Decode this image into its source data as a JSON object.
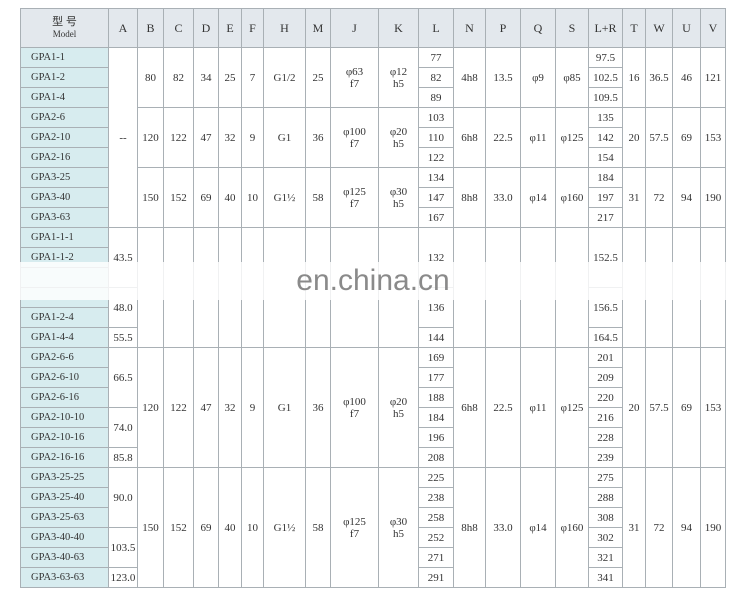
{
  "table": {
    "header": {
      "model": "型 号",
      "model_en": "Model",
      "columns": [
        "A",
        "B",
        "C",
        "D",
        "E",
        "F",
        "H",
        "M",
        "J",
        "K",
        "L",
        "N",
        "P",
        "Q",
        "S",
        "L+R",
        "T",
        "W",
        "U",
        "V"
      ]
    },
    "models": [
      "GPA1-1",
      "GPA1-2",
      "GPA1-4",
      "GPA2-6",
      "GPA2-10",
      "GPA2-16",
      "GPA3-25",
      "GPA3-40",
      "GPA3-63",
      "GPA1-1-1",
      "GPA1-1-2",
      null,
      null,
      "GPA1-2-4",
      "GPA1-4-4",
      "GPA2-6-6",
      "GPA2-6-10",
      "GPA2-6-16",
      "GPA2-10-10",
      "GPA2-10-16",
      "GPA2-16-16",
      "GPA3-25-25",
      "GPA3-25-40",
      "GPA3-25-63",
      "GPA3-40-40",
      "GPA3-40-63",
      "GPA3-63-63"
    ],
    "rows": [
      [
        "--",
        "80",
        "82",
        "34",
        "25",
        "7",
        "G1/2",
        "25",
        "φ63\nf7",
        "φ12\nh5",
        "77",
        "4h8",
        "13.5",
        "φ9",
        "φ85",
        "97.5",
        "16",
        "36.5",
        "46",
        "121"
      ],
      [
        null,
        null,
        null,
        null,
        null,
        null,
        null,
        null,
        null,
        null,
        "82",
        null,
        null,
        null,
        null,
        "102.5",
        null,
        null,
        null,
        null
      ],
      [
        null,
        null,
        null,
        null,
        null,
        null,
        null,
        null,
        null,
        null,
        "89",
        null,
        null,
        null,
        null,
        "109.5",
        null,
        null,
        null,
        null
      ],
      [
        null,
        "120",
        "122",
        "47",
        "32",
        "9",
        "G1",
        "36",
        "φ100\nf7",
        "φ20\nh5",
        "103",
        "6h8",
        "22.5",
        "φ11",
        "φ125",
        "135",
        "20",
        "57.5",
        "69",
        "153"
      ],
      [
        null,
        null,
        null,
        null,
        null,
        null,
        null,
        null,
        null,
        null,
        "110",
        null,
        null,
        null,
        null,
        "142",
        null,
        null,
        null,
        null
      ],
      [
        null,
        null,
        null,
        null,
        null,
        null,
        null,
        null,
        null,
        null,
        "122",
        null,
        null,
        null,
        null,
        "154",
        null,
        null,
        null,
        null
      ],
      [
        null,
        "150",
        "152",
        "69",
        "40",
        "10",
        "G1½",
        "58",
        "φ125\nf7",
        "φ30\nh5",
        "134",
        "8h8",
        "33.0",
        "φ14",
        "φ160",
        "184",
        "31",
        "72",
        "94",
        "190"
      ],
      [
        null,
        null,
        null,
        null,
        null,
        null,
        null,
        null,
        null,
        null,
        "147",
        null,
        null,
        null,
        null,
        "197",
        null,
        null,
        null,
        null
      ],
      [
        null,
        null,
        null,
        null,
        null,
        null,
        null,
        null,
        null,
        null,
        "167",
        null,
        null,
        null,
        null,
        "217",
        null,
        null,
        null,
        null
      ],
      [
        "43.5",
        null,
        null,
        null,
        null,
        null,
        null,
        null,
        null,
        null,
        "132",
        null,
        null,
        null,
        null,
        "152.5",
        null,
        null,
        null,
        null
      ],
      [
        null,
        null,
        null,
        null,
        null,
        null,
        null,
        null,
        null,
        null,
        null,
        null,
        null,
        null,
        null,
        null,
        null,
        null,
        null,
        null
      ],
      [
        null,
        null,
        null,
        null,
        null,
        null,
        null,
        null,
        null,
        null,
        null,
        null,
        null,
        null,
        null,
        null,
        null,
        null,
        null,
        null
      ],
      [
        "48.0",
        null,
        null,
        null,
        null,
        null,
        null,
        null,
        null,
        null,
        "136",
        null,
        null,
        null,
        null,
        "156.5",
        null,
        null,
        null,
        null
      ],
      [
        null,
        null,
        null,
        null,
        null,
        null,
        null,
        null,
        null,
        null,
        null,
        null,
        null,
        null,
        null,
        null,
        null,
        null,
        null,
        null
      ],
      [
        "55.5",
        null,
        null,
        null,
        null,
        null,
        null,
        null,
        null,
        null,
        "144",
        null,
        null,
        null,
        null,
        "164.5",
        null,
        null,
        null,
        null
      ],
      [
        "66.5",
        "120",
        "122",
        "47",
        "32",
        "9",
        "G1",
        "36",
        "φ100\nf7",
        "φ20\nh5",
        "169",
        "6h8",
        "22.5",
        "φ11",
        "φ125",
        "201",
        "20",
        "57.5",
        "69",
        "153"
      ],
      [
        null,
        null,
        null,
        null,
        null,
        null,
        null,
        null,
        null,
        null,
        "177",
        null,
        null,
        null,
        null,
        "209",
        null,
        null,
        null,
        null
      ],
      [
        null,
        null,
        null,
        null,
        null,
        null,
        null,
        null,
        null,
        null,
        "188",
        null,
        null,
        null,
        null,
        "220",
        null,
        null,
        null,
        null
      ],
      [
        "74.0",
        null,
        null,
        null,
        null,
        null,
        null,
        null,
        null,
        null,
        "184",
        null,
        null,
        null,
        null,
        "216",
        null,
        null,
        null,
        null
      ],
      [
        null,
        null,
        null,
        null,
        null,
        null,
        null,
        null,
        null,
        null,
        "196",
        null,
        null,
        null,
        null,
        "228",
        null,
        null,
        null,
        null
      ],
      [
        "85.8",
        null,
        null,
        null,
        null,
        null,
        null,
        null,
        null,
        null,
        "208",
        null,
        null,
        null,
        null,
        "239",
        null,
        null,
        null,
        null
      ],
      [
        "90.0",
        "150",
        "152",
        "69",
        "40",
        "10",
        "G1½",
        "58",
        "φ125\nf7",
        "φ30\nh5",
        "225",
        "8h8",
        "33.0",
        "φ14",
        "φ160",
        "275",
        "31",
        "72",
        "94",
        "190"
      ],
      [
        null,
        null,
        null,
        null,
        null,
        null,
        null,
        null,
        null,
        null,
        "238",
        null,
        null,
        null,
        null,
        "288",
        null,
        null,
        null,
        null
      ],
      [
        null,
        null,
        null,
        null,
        null,
        null,
        null,
        null,
        null,
        null,
        "258",
        null,
        null,
        null,
        null,
        "308",
        null,
        null,
        null,
        null
      ],
      [
        "103.5",
        null,
        null,
        null,
        null,
        null,
        null,
        null,
        null,
        null,
        "252",
        null,
        null,
        null,
        null,
        "302",
        null,
        null,
        null,
        null
      ],
      [
        null,
        null,
        null,
        null,
        null,
        null,
        null,
        null,
        null,
        null,
        "271",
        null,
        null,
        null,
        null,
        "321",
        null,
        null,
        null,
        null
      ],
      [
        "123.0",
        null,
        null,
        null,
        null,
        null,
        null,
        null,
        null,
        null,
        "291",
        null,
        null,
        null,
        null,
        "341",
        null,
        null,
        null,
        null
      ]
    ]
  },
  "watermark": "en.china.cn"
}
